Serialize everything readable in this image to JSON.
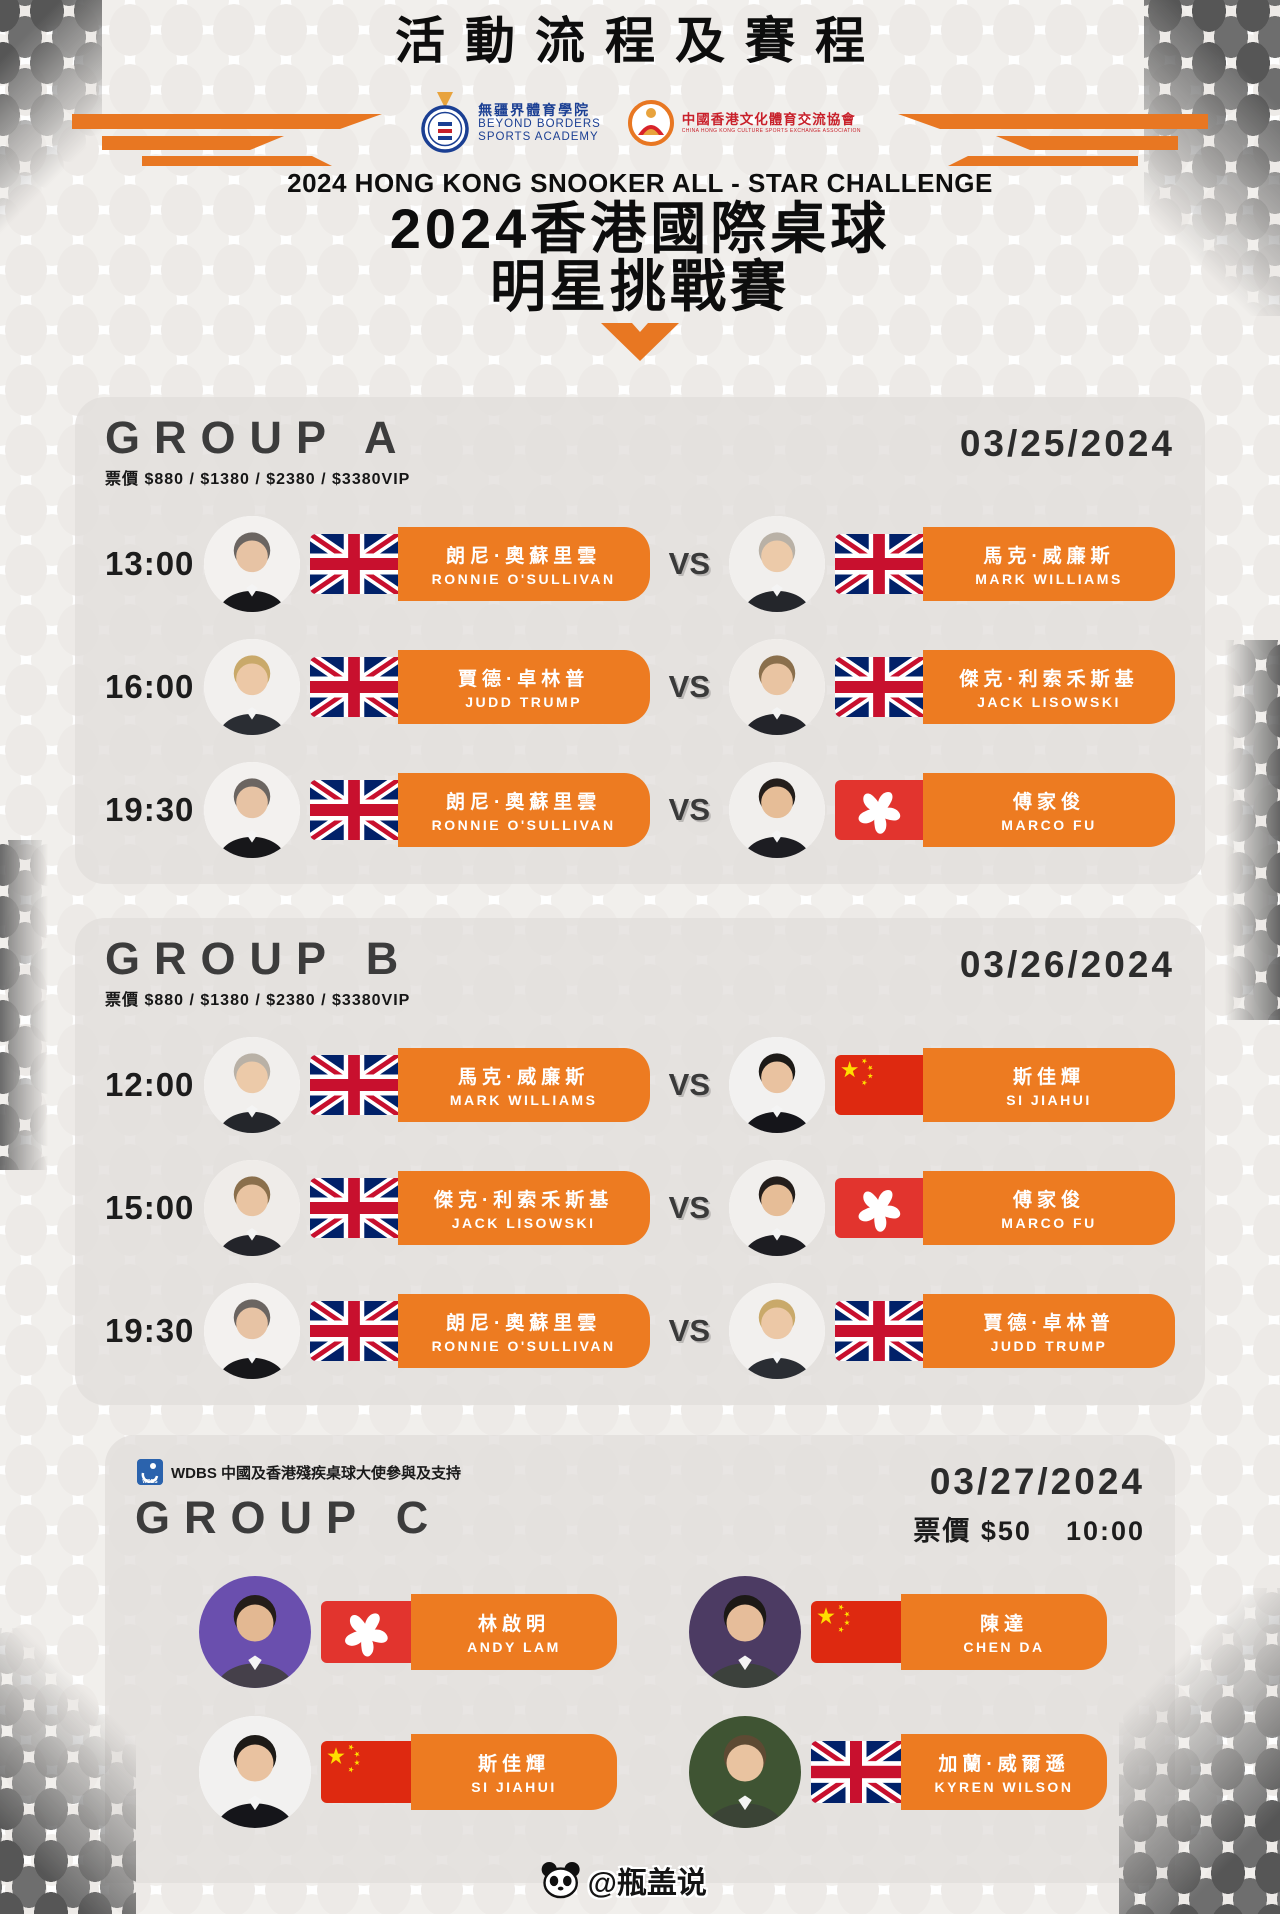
{
  "poster": {
    "title": "活動流程及賽程",
    "event_title_en": "2024 HONG KONG SNOOKER ALL - STAR CHALLENGE",
    "event_title_zh_line1": "2024香港國際桌球",
    "event_title_zh_line2": "明星挑戰賽",
    "watermark": "@瓶盖说"
  },
  "logos": {
    "academy": {
      "zh": "無疆界體育學院",
      "en_line1": "BEYOND BORDERS",
      "en_line2": "SPORTS ACADEMY"
    },
    "association": {
      "zh": "中國香港文化體育交流協會",
      "en": "CHINA HONG KONG CULTURE SPORTS EXCHANGE ASSOCIATION"
    }
  },
  "labels": {
    "vs": "VS"
  },
  "colors": {
    "accent_orange": "#ED7B21",
    "panel_gray": "#E1DEDB",
    "flag_red": "#DE2910",
    "uk_blue": "#012169"
  },
  "groups": [
    {
      "name": "GROUP A",
      "price": "票價 $880 / $1380 / $2380 / $3380VIP",
      "date": "03/25/2024",
      "matches": [
        {
          "time": "13:00",
          "p1": {
            "zh": "朗尼·奧蘇里雲",
            "en": "RONNIE O'SULLIVAN",
            "flag": "uk"
          },
          "p2": {
            "zh": "馬克·威廉斯",
            "en": "MARK WILLIAMS",
            "flag": "uk"
          }
        },
        {
          "time": "16:00",
          "p1": {
            "zh": "賈德·卓林普",
            "en": "JUDD TRUMP",
            "flag": "uk"
          },
          "p2": {
            "zh": "傑克·利索禾斯基",
            "en": "JACK LISOWSKI",
            "flag": "uk"
          }
        },
        {
          "time": "19:30",
          "p1": {
            "zh": "朗尼·奧蘇里雲",
            "en": "RONNIE O'SULLIVAN",
            "flag": "uk"
          },
          "p2": {
            "zh": "傅家俊",
            "en": "MARCO FU",
            "flag": "hk"
          }
        }
      ]
    },
    {
      "name": "GROUP B",
      "price": "票價 $880 / $1380 / $2380 / $3380VIP",
      "date": "03/26/2024",
      "matches": [
        {
          "time": "12:00",
          "p1": {
            "zh": "馬克·威廉斯",
            "en": "MARK WILLIAMS",
            "flag": "uk"
          },
          "p2": {
            "zh": "斯佳輝",
            "en": "SI JIAHUI",
            "flag": "cn"
          }
        },
        {
          "time": "15:00",
          "p1": {
            "zh": "傑克·利索禾斯基",
            "en": "JACK LISOWSKI",
            "flag": "uk"
          },
          "p2": {
            "zh": "傅家俊",
            "en": "MARCO FU",
            "flag": "hk"
          }
        },
        {
          "time": "19:30",
          "p1": {
            "zh": "朗尼·奧蘇里雲",
            "en": "RONNIE O'SULLIVAN",
            "flag": "uk"
          },
          "p2": {
            "zh": "賈德·卓林普",
            "en": "JUDD TRUMP",
            "flag": "uk"
          }
        }
      ]
    },
    {
      "name": "GROUP C",
      "note": "WDBS 中國及香港殘疾桌球大使參與及支持",
      "date": "03/27/2024",
      "price": "票價 $50",
      "time": "10:00",
      "pairs": [
        [
          {
            "zh": "林啟明",
            "en": "ANDY LAM",
            "flag": "hk"
          },
          {
            "zh": "陳達",
            "en": "CHEN DA",
            "flag": "cn"
          }
        ],
        [
          {
            "zh": "斯佳輝",
            "en": "SI JIAHUI",
            "flag": "cn"
          },
          {
            "zh": "加蘭·威爾遜",
            "en": "KYREN WILSON",
            "flag": "uk"
          }
        ]
      ]
    }
  ]
}
